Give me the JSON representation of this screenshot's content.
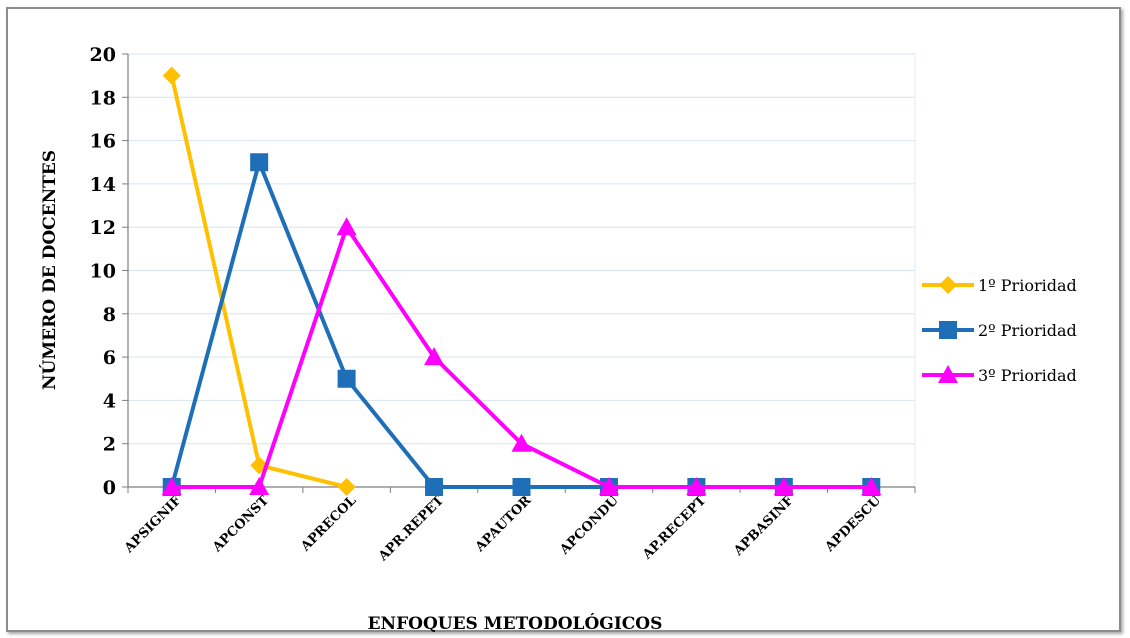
{
  "chart_data": {
    "type": "line",
    "title": "",
    "xlabel": "ENFOQUES METODOLÓGICOS",
    "ylabel": "NÚMERO DE DOCENTES",
    "ylim": [
      0,
      20
    ],
    "yticks": [
      0,
      2,
      4,
      6,
      8,
      10,
      12,
      14,
      16,
      18,
      20
    ],
    "categories": [
      "APSIGNIF",
      "APCONST",
      "APRECOL",
      "APR.REPET",
      "APAUTOR",
      "APCONDU",
      "AP.RECEPT",
      "APBASINF",
      "APDESCU"
    ],
    "grid": true,
    "legend_position": "right",
    "series": [
      {
        "name": "1º Prioridad",
        "color": "#FFC000",
        "marker": "diamond",
        "values": [
          19,
          1,
          0,
          null,
          null,
          null,
          null,
          null,
          null
        ]
      },
      {
        "name": "2º Prioridad",
        "color": "#1F6FB8",
        "marker": "square",
        "values": [
          0,
          15,
          5,
          0,
          0,
          0,
          0,
          0,
          0
        ]
      },
      {
        "name": "3º Prioridad",
        "color": "#FF00FF",
        "marker": "triangle",
        "values": [
          0,
          0,
          12,
          6,
          2,
          0,
          0,
          0,
          0
        ]
      }
    ]
  }
}
